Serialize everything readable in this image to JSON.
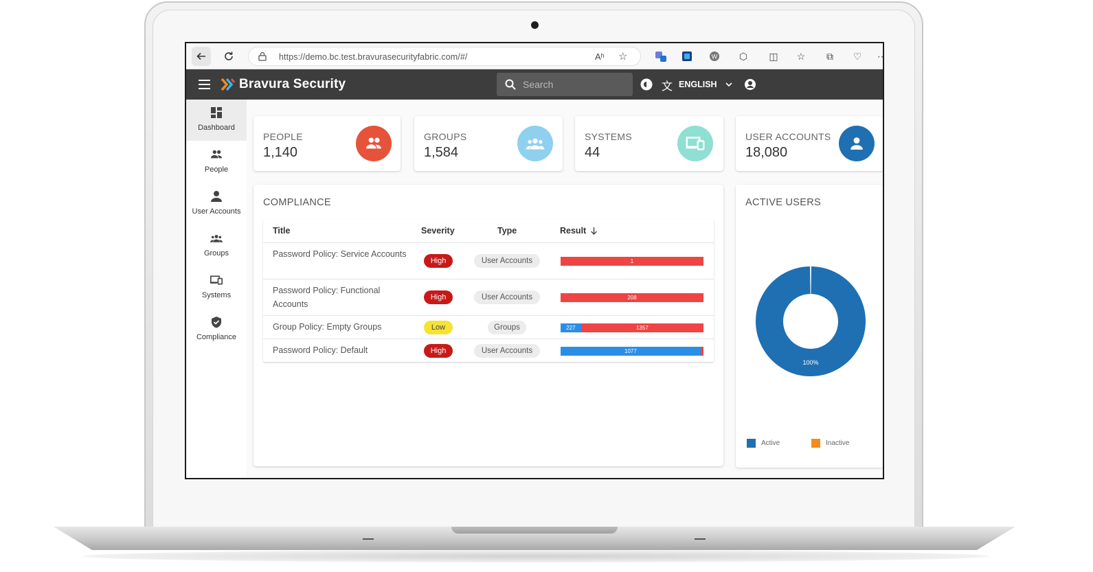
{
  "browser": {
    "url": "https://demo.bc.test.bravurasecurityfabric.com/#/"
  },
  "app": {
    "brand": "Bravura Security",
    "search_placeholder": "Search",
    "language": "ENGLISH"
  },
  "sidebar": {
    "items": [
      {
        "label": "Dashboard",
        "icon": "dashboard-icon",
        "active": true
      },
      {
        "label": "People",
        "icon": "people-icon",
        "active": false
      },
      {
        "label": "User Accounts",
        "icon": "user-account-icon",
        "active": false
      },
      {
        "label": "Groups",
        "icon": "groups-icon",
        "active": false
      },
      {
        "label": "Systems",
        "icon": "systems-icon",
        "active": false
      },
      {
        "label": "Compliance",
        "icon": "shield-icon",
        "active": false
      }
    ]
  },
  "stats": [
    {
      "label": "PEOPLE",
      "value": "1,140",
      "color": "#e5533a",
      "icon": "people-icon"
    },
    {
      "label": "GROUPS",
      "value": "1,584",
      "color": "#8fd0ee",
      "icon": "groups-icon"
    },
    {
      "label": "SYSTEMS",
      "value": "44",
      "color": "#90dfd3",
      "icon": "systems-icon"
    },
    {
      "label": "USER ACCOUNTS",
      "value": "18,080",
      "color": "#1f6fb3",
      "icon": "user-account-icon"
    }
  ],
  "compliance": {
    "title": "COMPLIANCE",
    "columns": [
      "Title",
      "Severity",
      "Type",
      "Result"
    ],
    "rows": [
      {
        "title": "Password Policy: Service Accounts",
        "severity": "High",
        "type": "User Accounts",
        "result": [
          {
            "value": 1,
            "label": "1",
            "color": "#ef4444"
          }
        ]
      },
      {
        "title": "Password Policy: Functional Accounts",
        "severity": "High",
        "type": "User Accounts",
        "result": [
          {
            "value": 208,
            "label": "208",
            "color": "#ef4444"
          }
        ]
      },
      {
        "title": "Group Policy: Empty Groups",
        "severity": "Low",
        "type": "Groups",
        "result": [
          {
            "value": 227,
            "label": "227",
            "color": "#2b8ee6"
          },
          {
            "value": 1357,
            "label": "1357",
            "color": "#ef4444"
          }
        ]
      },
      {
        "title": "Password Policy: Default",
        "severity": "High",
        "type": "User Accounts",
        "result": [
          {
            "value": 1077,
            "label": "1077",
            "color": "#2b8ee6"
          },
          {
            "value": 18,
            "label": "",
            "color": "#ef4444"
          }
        ]
      }
    ]
  },
  "active_users": {
    "title": "ACTIVE USERS",
    "chart_data": {
      "type": "pie",
      "categories": [
        "Active",
        "Inactive"
      ],
      "values": [
        100,
        0
      ],
      "data_label": "100%",
      "colors": [
        "#1f6fb3",
        "#f28c1e"
      ],
      "legend": "bottom"
    }
  }
}
